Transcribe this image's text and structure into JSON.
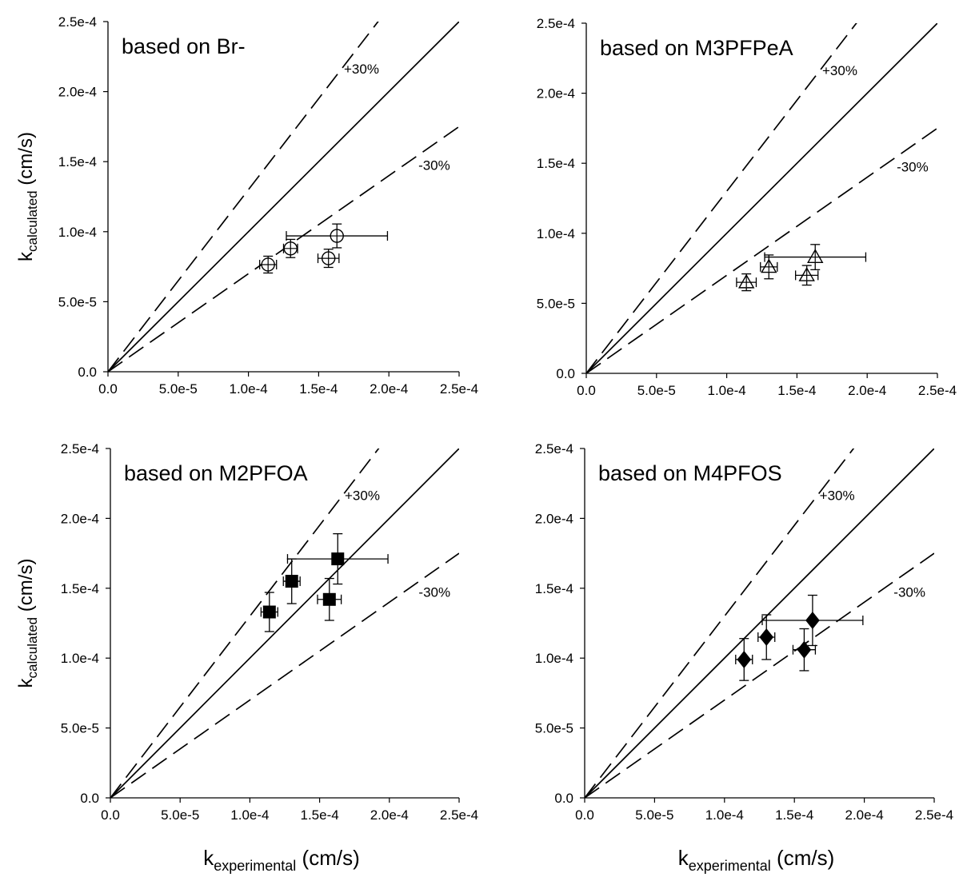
{
  "chart_data": [
    {
      "type": "scatter",
      "title": "based on Br-",
      "marker": "open-circle",
      "xlim": [
        0,
        0.00025
      ],
      "ylim": [
        0,
        0.00025
      ],
      "xticks": [
        "0.0",
        "5.0e-5",
        "1.0e-4",
        "1.5e-4",
        "2.0e-4",
        "2.5e-4"
      ],
      "yticks": [
        "0.0",
        "5.0e-5",
        "1.0e-4",
        "1.5e-4",
        "2.0e-4",
        "2.5e-4"
      ],
      "ylabel": {
        "base": "k",
        "sub": "calculated",
        "unit": " (cm/s)"
      },
      "xlabel": null,
      "annotations": {
        "plus": "+30%",
        "minus": "-30%"
      },
      "lines": [
        {
          "kind": "1:1",
          "slope": 1.0
        },
        {
          "kind": "+30%",
          "slope": 1.3
        },
        {
          "kind": "-30%",
          "slope": 0.7
        }
      ],
      "points": [
        {
          "x": 0.000114,
          "y": 7.65e-05,
          "xerr": [
            6e-06,
            6e-06
          ],
          "yerr": [
            6e-06,
            6e-06
          ]
        },
        {
          "x": 0.00013,
          "y": 8.8e-05,
          "xerr": [
            5e-06,
            5e-06
          ],
          "yerr": [
            6.5e-06,
            6.5e-06
          ]
        },
        {
          "x": 0.000157,
          "y": 8.1e-05,
          "xerr": [
            7.5e-06,
            7.5e-06
          ],
          "yerr": [
            6.5e-06,
            6.5e-06
          ]
        },
        {
          "x": 0.000163,
          "y": 9.7e-05,
          "xerr": [
            3.6e-05,
            3.6e-05
          ],
          "yerr": [
            8.5e-06,
            8.5e-06
          ]
        }
      ]
    },
    {
      "type": "scatter",
      "title": "based on M3PFPeA",
      "marker": "open-triangle",
      "xlim": [
        0,
        0.00025
      ],
      "ylim": [
        0,
        0.00025
      ],
      "xticks": [
        "0.0",
        "5.0e-5",
        "1.0e-4",
        "1.5e-4",
        "2.0e-4",
        "2.5e-4"
      ],
      "yticks": [
        "0.0",
        "5.0e-5",
        "1.0e-4",
        "1.5e-4",
        "2.0e-4",
        "2.5e-4"
      ],
      "ylabel": null,
      "xlabel": null,
      "annotations": {
        "plus": "+30%",
        "minus": "-30%"
      },
      "lines": [
        {
          "kind": "1:1",
          "slope": 1.0
        },
        {
          "kind": "+30%",
          "slope": 1.3
        },
        {
          "kind": "-30%",
          "slope": 0.7
        }
      ],
      "points": [
        {
          "x": 0.000114,
          "y": 6.5e-05,
          "xerr": [
            7e-06,
            7e-06
          ],
          "yerr": [
            6e-06,
            6e-06
          ]
        },
        {
          "x": 0.00013,
          "y": 7.6e-05,
          "xerr": [
            6e-06,
            6e-06
          ],
          "yerr": [
            8.5e-06,
            8.5e-06
          ]
        },
        {
          "x": 0.000157,
          "y": 7e-05,
          "xerr": [
            8e-06,
            8e-06
          ],
          "yerr": [
            7e-06,
            7e-06
          ]
        },
        {
          "x": 0.000163,
          "y": 8.3e-05,
          "xerr": [
            3.6e-05,
            3.6e-05
          ],
          "yerr": [
            9e-06,
            9e-06
          ]
        }
      ]
    },
    {
      "type": "scatter",
      "title": "based on M2PFOA",
      "marker": "filled-square",
      "xlim": [
        0,
        0.00025
      ],
      "ylim": [
        0,
        0.00025
      ],
      "xticks": [
        "0.0",
        "5.0e-5",
        "1.0e-4",
        "1.5e-4",
        "2.0e-4",
        "2.5e-4"
      ],
      "yticks": [
        "0.0",
        "5.0e-5",
        "1.0e-4",
        "1.5e-4",
        "2.0e-4",
        "2.5e-4"
      ],
      "ylabel": {
        "base": "k",
        "sub": "calculated",
        "unit": " (cm/s)"
      },
      "xlabel": {
        "base": "k",
        "sub": "experimental",
        "unit": " (cm/s)"
      },
      "annotations": {
        "plus": "+30%",
        "minus": "-30%"
      },
      "lines": [
        {
          "kind": "1:1",
          "slope": 1.0
        },
        {
          "kind": "+30%",
          "slope": 1.3
        },
        {
          "kind": "-30%",
          "slope": 0.7
        }
      ],
      "points": [
        {
          "x": 0.000114,
          "y": 0.000133,
          "xerr": [
            6e-06,
            6e-06
          ],
          "yerr": [
            1.4e-05,
            1.4e-05
          ]
        },
        {
          "x": 0.00013,
          "y": 0.000155,
          "xerr": [
            6e-06,
            6e-06
          ],
          "yerr": [
            1.6e-05,
            1.6e-05
          ]
        },
        {
          "x": 0.000157,
          "y": 0.000142,
          "xerr": [
            8.5e-06,
            8.5e-06
          ],
          "yerr": [
            1.5e-05,
            1.5e-05
          ]
        },
        {
          "x": 0.000163,
          "y": 0.000171,
          "xerr": [
            3.6e-05,
            3.6e-05
          ],
          "yerr": [
            1.8e-05,
            1.8e-05
          ]
        }
      ]
    },
    {
      "type": "scatter",
      "title": "based on M4PFOS",
      "marker": "filled-diamond",
      "xlim": [
        0,
        0.00025
      ],
      "ylim": [
        0,
        0.00025
      ],
      "xticks": [
        "0.0",
        "5.0e-5",
        "1.0e-4",
        "1.5e-4",
        "2.0e-4",
        "2.5e-4"
      ],
      "yticks": [
        "0.0",
        "5.0e-5",
        "1.0e-4",
        "1.5e-4",
        "2.0e-4",
        "2.5e-4"
      ],
      "ylabel": null,
      "xlabel": {
        "base": "k",
        "sub": "experimental",
        "unit": " (cm/s)"
      },
      "annotations": {
        "plus": "+30%",
        "minus": "-30%"
      },
      "lines": [
        {
          "kind": "1:1",
          "slope": 1.0
        },
        {
          "kind": "+30%",
          "slope": 1.3
        },
        {
          "kind": "-30%",
          "slope": 0.7
        }
      ],
      "points": [
        {
          "x": 0.000114,
          "y": 9.9e-05,
          "xerr": [
            6e-06,
            6e-06
          ],
          "yerr": [
            1.5e-05,
            1.5e-05
          ]
        },
        {
          "x": 0.00013,
          "y": 0.000115,
          "xerr": [
            6e-06,
            6e-06
          ],
          "yerr": [
            1.6e-05,
            1.6e-05
          ]
        },
        {
          "x": 0.000157,
          "y": 0.000106,
          "xerr": [
            8e-06,
            8e-06
          ],
          "yerr": [
            1.5e-05,
            1.5e-05
          ]
        },
        {
          "x": 0.000163,
          "y": 0.000127,
          "xerr": [
            3.6e-05,
            3.6e-05
          ],
          "yerr": [
            1.8e-05,
            1.8e-05
          ]
        }
      ]
    }
  ]
}
